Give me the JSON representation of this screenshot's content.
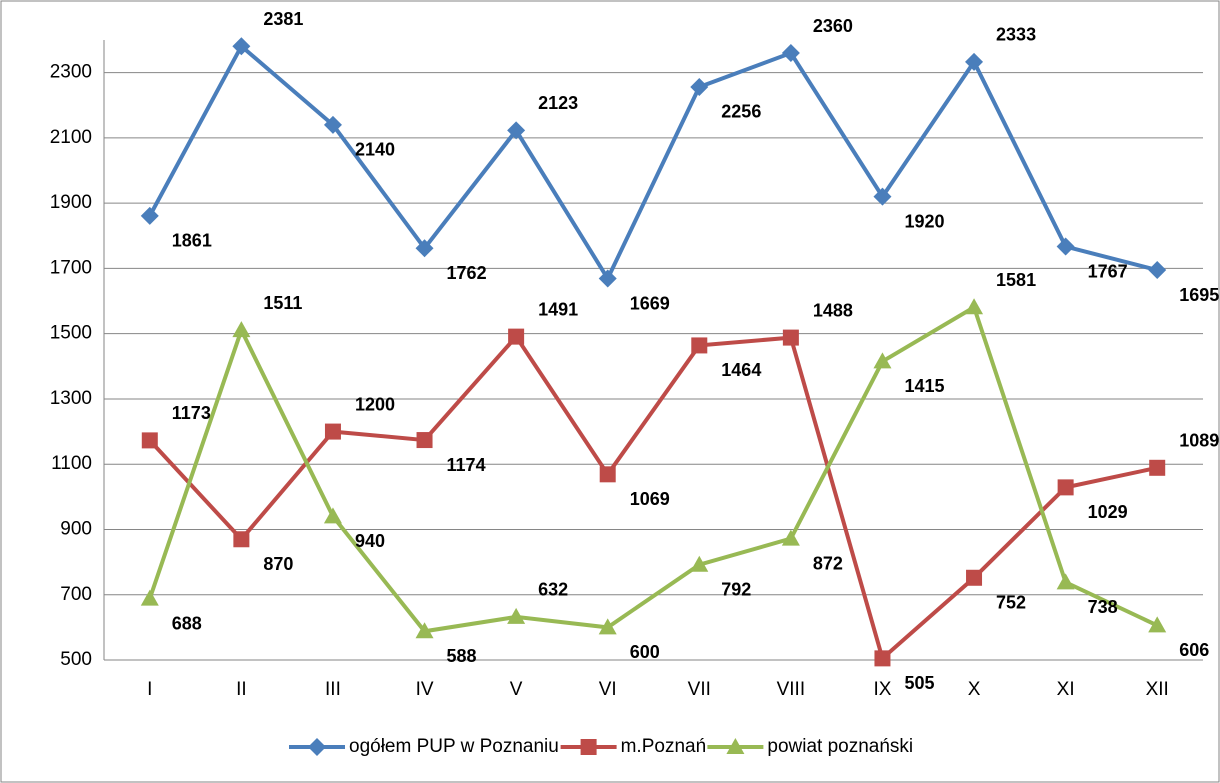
{
  "chart_data": {
    "type": "line",
    "categories": [
      "I",
      "II",
      "III",
      "IV",
      "V",
      "VI",
      "VII",
      "VIII",
      "IX",
      "X",
      "XI",
      "XII"
    ],
    "series": [
      {
        "name": "ogółem PUP w Poznaniu",
        "color": "#4a7ebb",
        "marker": "diamond",
        "values": [
          1861,
          2381,
          2140,
          1762,
          2123,
          1669,
          2256,
          2360,
          1920,
          2333,
          1767,
          1695
        ]
      },
      {
        "name": "m.Poznań",
        "color": "#be4b48",
        "marker": "square",
        "values": [
          1173,
          870,
          1200,
          1174,
          1491,
          1069,
          1464,
          1488,
          505,
          752,
          1029,
          1089
        ]
      },
      {
        "name": "powiat poznański",
        "color": "#98b954",
        "marker": "triangle",
        "values": [
          688,
          1511,
          940,
          588,
          632,
          600,
          792,
          872,
          1415,
          1581,
          738,
          606
        ]
      }
    ],
    "ylim": [
      500,
      2400
    ],
    "yticks": [
      500,
      700,
      900,
      1100,
      1300,
      1500,
      1700,
      1900,
      2100,
      2300
    ],
    "grid": true,
    "legend": "bottom"
  }
}
